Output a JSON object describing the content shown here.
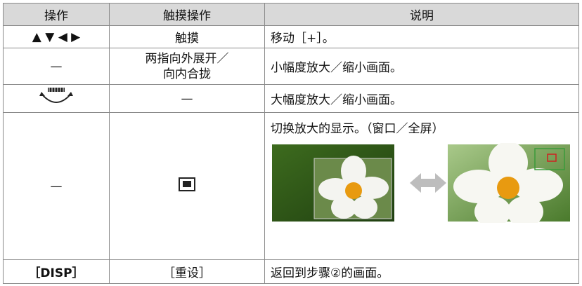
{
  "table": {
    "header": [
      "操作",
      "触摸操作",
      "说明"
    ],
    "rows": [
      {
        "op": "▲ ▼ ◀ ▶",
        "touch": [
          "触摸"
        ],
        "desc": "移动［+］。"
      },
      {
        "op": "—",
        "touch": [
          "两指向外展开／",
          "向内合拢"
        ],
        "desc": "小幅度放大／缩小画面。"
      },
      {
        "touch": [
          "—"
        ],
        "desc": "大幅度放大／缩小画面。"
      },
      {
        "op": "—",
        "desc": "切换放大的显示。（窗口／全屏）"
      },
      {
        "op": "［DISP］",
        "touch": [
          "［重设］"
        ],
        "desc": "返回到步骤②的画面。"
      }
    ]
  }
}
